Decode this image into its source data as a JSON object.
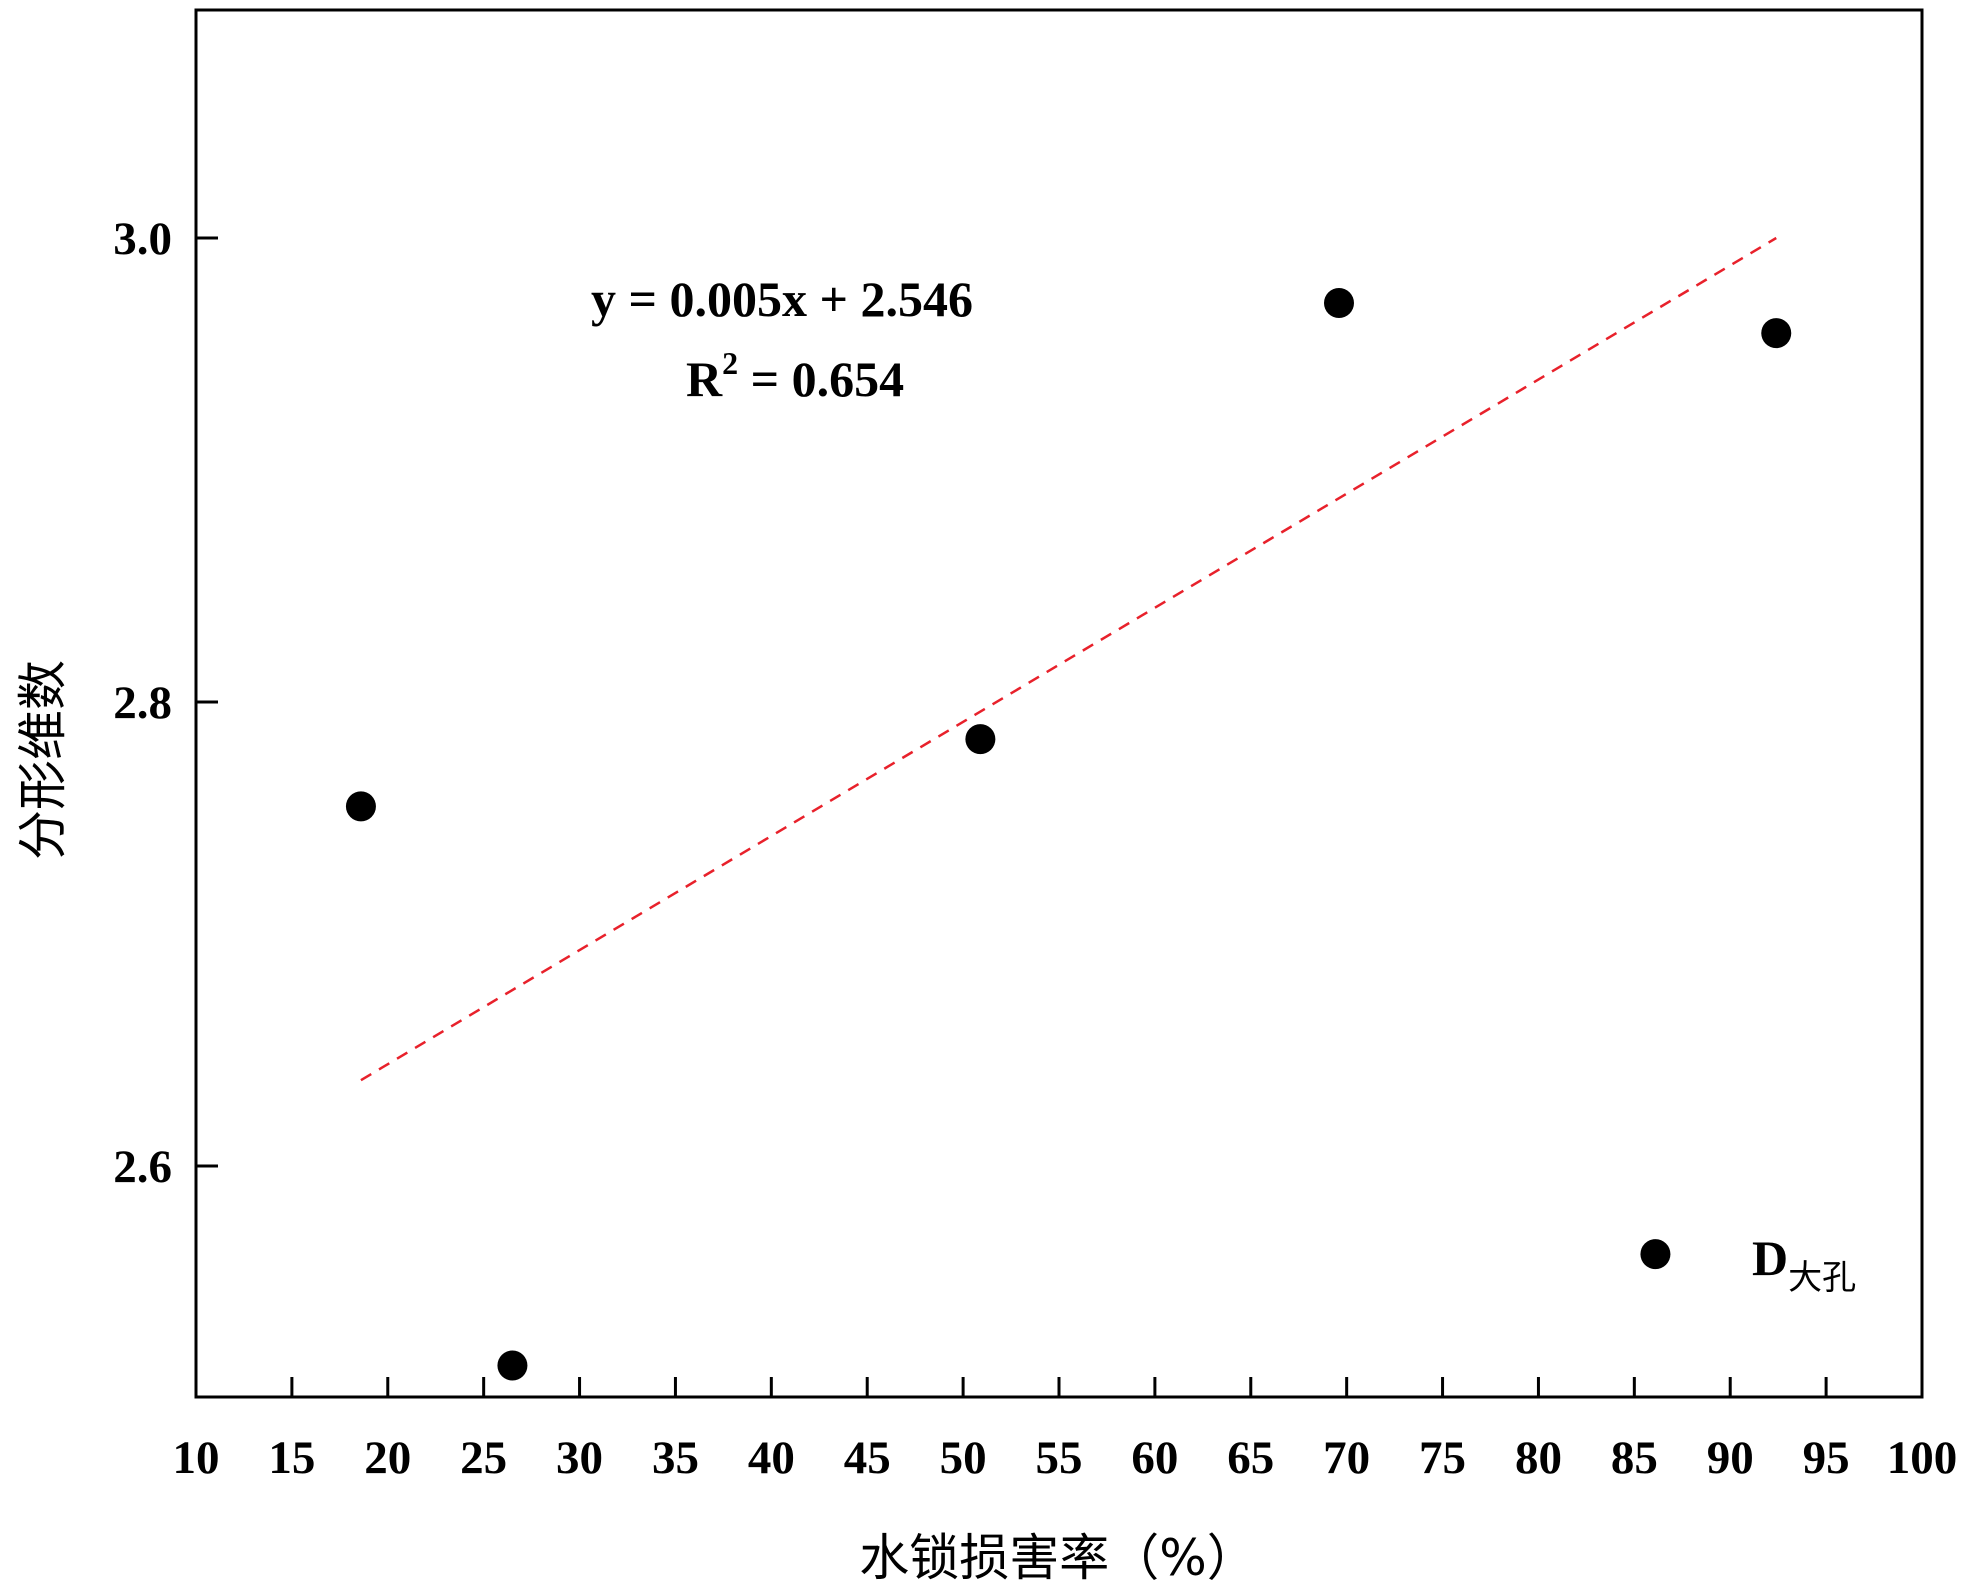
{
  "chart_data": {
    "type": "scatter",
    "title": "",
    "xlabel": "水锁损害率（%）",
    "ylabel": "分形维数",
    "xlim": [
      10,
      100
    ],
    "ylim": [
      2.5,
      3.1
    ],
    "x_ticks": [
      10,
      15,
      20,
      25,
      30,
      35,
      40,
      45,
      50,
      55,
      60,
      65,
      70,
      75,
      80,
      85,
      90,
      95,
      100
    ],
    "y_ticks": [
      2.6,
      2.8,
      3.0
    ],
    "y_tick_labels": [
      "2.6",
      "2.8",
      "3.0"
    ],
    "grid": false,
    "series": [
      {
        "name": "D大孔",
        "points": [
          {
            "x": 18.6,
            "y": 2.755
          },
          {
            "x": 26.5,
            "y": 2.514
          },
          {
            "x": 50.9,
            "y": 2.784
          },
          {
            "x": 69.6,
            "y": 2.972
          },
          {
            "x": 86.1,
            "y": 2.562
          },
          {
            "x": 92.4,
            "y": 2.959
          }
        ],
        "color": "#000000"
      }
    ],
    "trendline": {
      "slope": 0.005,
      "intercept": 2.546,
      "x_range": [
        18.6,
        92.4
      ],
      "y_range": [
        2.637,
        3.0
      ],
      "color": "#e8212b",
      "style": "dashed"
    },
    "annotations": {
      "equation": "y = 0.005x + 2.546",
      "r2_prefix": "R",
      "r2_sup": "2",
      "r2_value": " = 0.654",
      "series_label_main": "D",
      "series_label_sub": "大孔"
    }
  }
}
